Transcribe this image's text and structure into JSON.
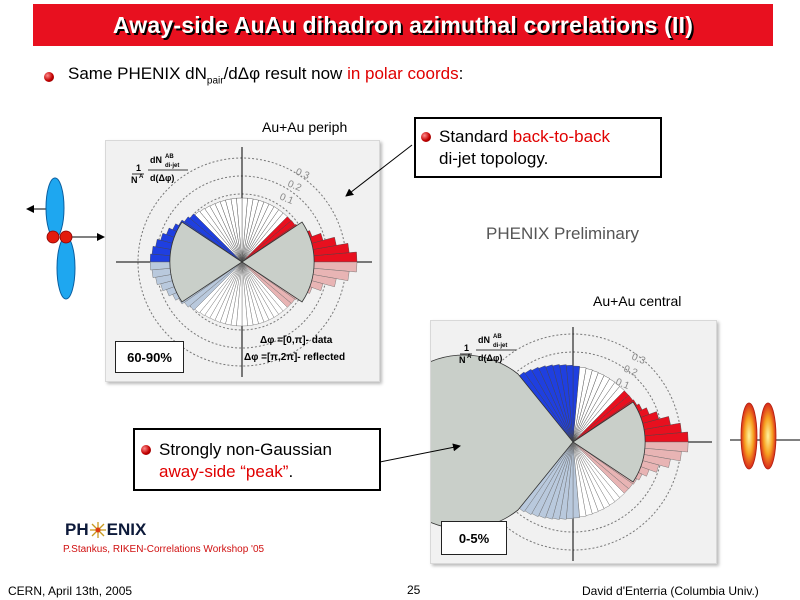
{
  "title": "Away-side AuAu dihadron azimuthal correlations (II)",
  "main_bullet": {
    "text_before": "Same PHENIX dN",
    "subscript": "pair",
    "text_mid": "/dΔφ  result now ",
    "highlight": "in polar coords",
    "text_after": ":"
  },
  "periph": {
    "label": "Au+Au periph",
    "centrality": "60-90%",
    "legend_data": "Δφ =[0,π]- data",
    "legend_reflected": "Δφ =[π,2π]- reflected"
  },
  "central": {
    "label": "Au+Au central",
    "centrality": "0-5%"
  },
  "axis_formula": {
    "frac_num": "1",
    "frac_den": "N",
    "den_sup": "A",
    "dn": "dN",
    "dn_sup": "AB",
    "dn_sub": "di-jet",
    "dphi": "d(Δφ)"
  },
  "ring_labels": [
    "0.3",
    "0.2",
    "0.1"
  ],
  "callout_standard": {
    "prefix": "Standard ",
    "highlight": "back-to-back",
    "line2": "di-jet topology."
  },
  "callout_strong": {
    "line1": "Strongly non-Gaussian",
    "highlight": "away-side “peak”",
    "suffix": "."
  },
  "preliminary": "PHENIX Preliminary",
  "logo": {
    "ph": "PH",
    "enix": "ENIX"
  },
  "credit": "P.Stankus, RIKEN-Correlations Workshop '05",
  "footer": {
    "left": "CERN, April 13th, 2005",
    "page": "25",
    "right": "David d'Enterria (Columbia Univ.)"
  },
  "colors": {
    "title_bg": "#e8101f",
    "near_side": "#e8101f",
    "away_side": "#1f3fe0",
    "reflected_near": "#e8b4b4",
    "reflected_away": "#b9c9dd",
    "gaussian_fill": "#c9cfc9",
    "jet_blue": "#1ea7f0"
  }
}
